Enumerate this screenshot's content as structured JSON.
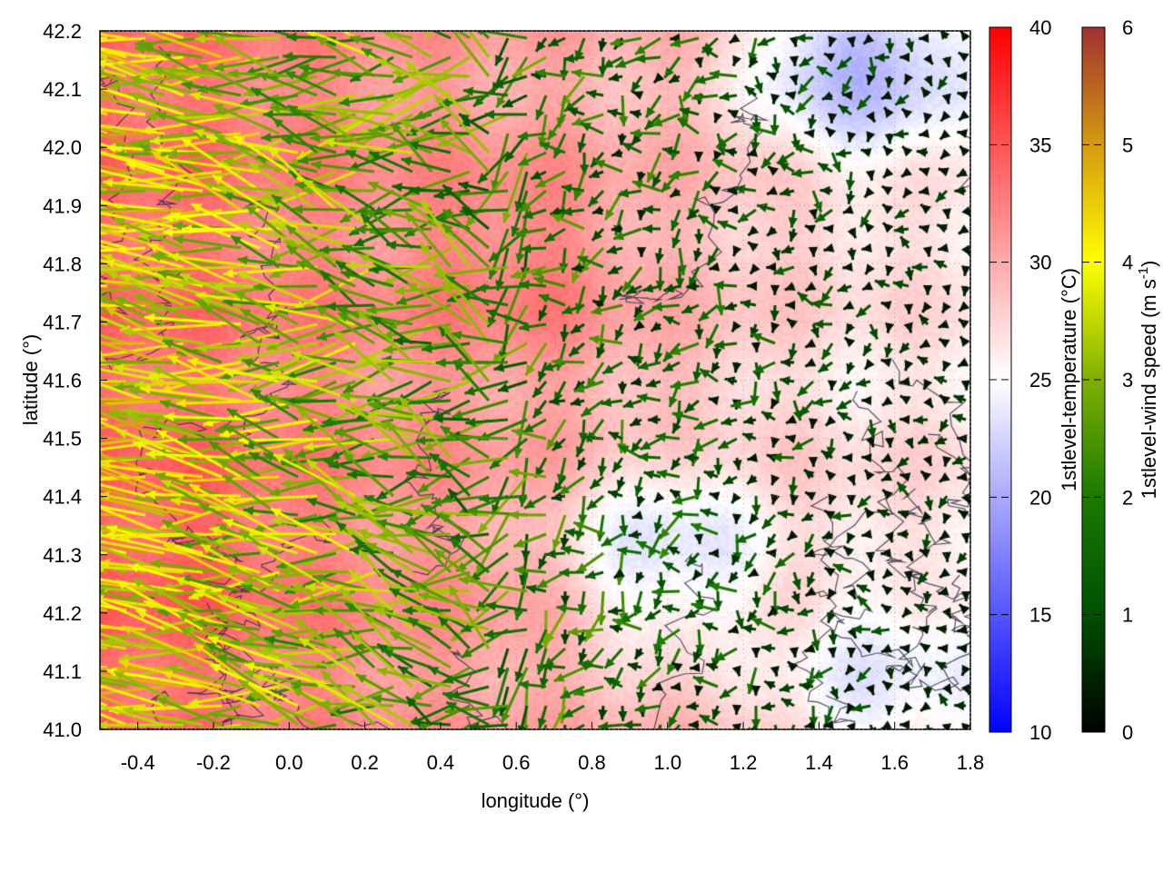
{
  "chart_data": {
    "type": "heatmap",
    "subtype": "temperature map with wind vectors and contours",
    "xlabel": "longitude (°)",
    "ylabel": "latitude (°)",
    "xlim": [
      -0.5,
      1.8
    ],
    "ylim": [
      41.0,
      42.2
    ],
    "xticks": [
      "-0.4",
      "-0.2",
      "0.0",
      "0.2",
      "0.4",
      "0.6",
      "0.8",
      "1.0",
      "1.2",
      "1.4",
      "1.6",
      "1.8"
    ],
    "yticks": [
      "41.0",
      "41.1",
      "41.2",
      "41.3",
      "41.4",
      "41.5",
      "41.6",
      "41.7",
      "41.8",
      "41.9",
      "42.0",
      "42.1",
      "42.2"
    ],
    "grid": true,
    "colorbars": [
      {
        "label": "1stlevel-temperature (°C)",
        "range": [
          10,
          40
        ],
        "ticks": [
          "10",
          "15",
          "20",
          "25",
          "30",
          "35",
          "40"
        ],
        "colors": [
          "#0000ff",
          "#ffffff",
          "#ff0000"
        ]
      },
      {
        "label_main": "1stlevel-wind speed (m s",
        "label_sup": "-1",
        "label_end": ")",
        "range": [
          0,
          6
        ],
        "ticks": [
          "0",
          "1",
          "2",
          "3",
          "4",
          "5",
          "6"
        ],
        "colors": [
          "#000000",
          "#005000",
          "#1a7a00",
          "#7fb000",
          "#ffff00",
          "#d49a10",
          "#a03030"
        ]
      }
    ],
    "temperature_regions": [
      {
        "lon": -0.3,
        "lat": 41.3,
        "temp": 35
      },
      {
        "lon": 0.6,
        "lat": 41.8,
        "temp": 34
      },
      {
        "lon": 1.5,
        "lat": 42.15,
        "temp": 17
      },
      {
        "lon": 1.0,
        "lat": 41.3,
        "temp": 20
      },
      {
        "lon": 1.55,
        "lat": 41.1,
        "temp": 22
      },
      {
        "lon": 1.5,
        "lat": 41.6,
        "temp": 26
      }
    ],
    "wind_direction": "predominantly westward in west, weak and variable in east"
  }
}
